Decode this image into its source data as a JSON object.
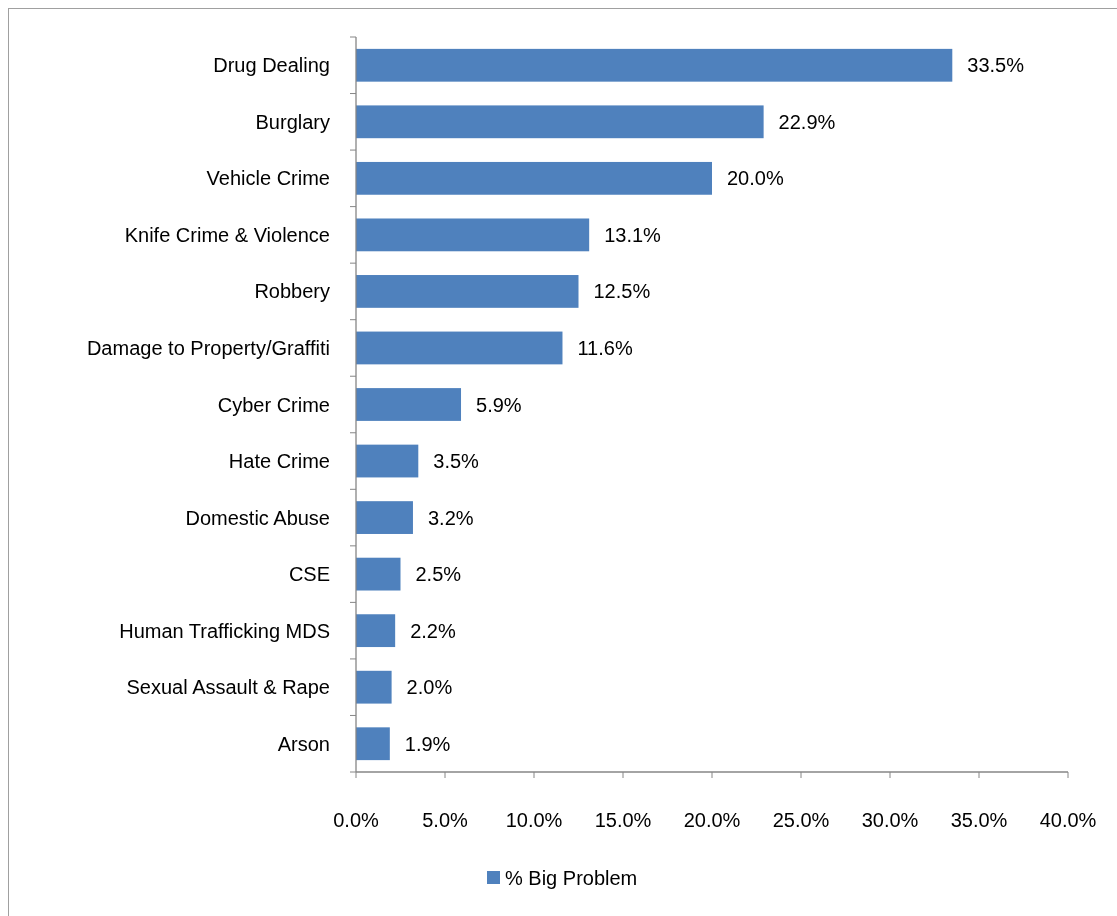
{
  "chart_data": {
    "type": "bar",
    "orientation": "horizontal",
    "categories": [
      "Drug Dealing",
      "Burglary",
      "Vehicle Crime",
      "Knife Crime & Violence",
      "Robbery",
      "Damage to Property/Graffiti",
      "Cyber Crime",
      "Hate Crime",
      "Domestic Abuse",
      "CSE",
      "Human Trafficking MDS",
      "Sexual Assault & Rape",
      "Arson"
    ],
    "series": [
      {
        "name": "% Big Problem",
        "color": "#4f81bd",
        "values": [
          33.5,
          22.9,
          20.0,
          13.1,
          12.5,
          11.6,
          5.9,
          3.5,
          3.2,
          2.5,
          2.2,
          2.0,
          1.9
        ],
        "value_labels": [
          "33.5%",
          "22.9%",
          "20.0%",
          "13.1%",
          "12.5%",
          "11.6%",
          "5.9%",
          "3.5%",
          "3.2%",
          "2.5%",
          "2.2%",
          "2.0%",
          "1.9%"
        ]
      }
    ],
    "xlim": [
      0,
      40
    ],
    "xticks": [
      {
        "value": 0,
        "label": "0.0%"
      },
      {
        "value": 5,
        "label": "5.0%"
      },
      {
        "value": 10,
        "label": "10.0%"
      },
      {
        "value": 15,
        "label": "15.0%"
      },
      {
        "value": 20,
        "label": "20.0%"
      },
      {
        "value": 25,
        "label": "25.0%"
      },
      {
        "value": 30,
        "label": "30.0%"
      },
      {
        "value": 35,
        "label": "35.0%"
      },
      {
        "value": 40,
        "label": "40.0%"
      }
    ],
    "legend": "bottom",
    "grid": false
  }
}
